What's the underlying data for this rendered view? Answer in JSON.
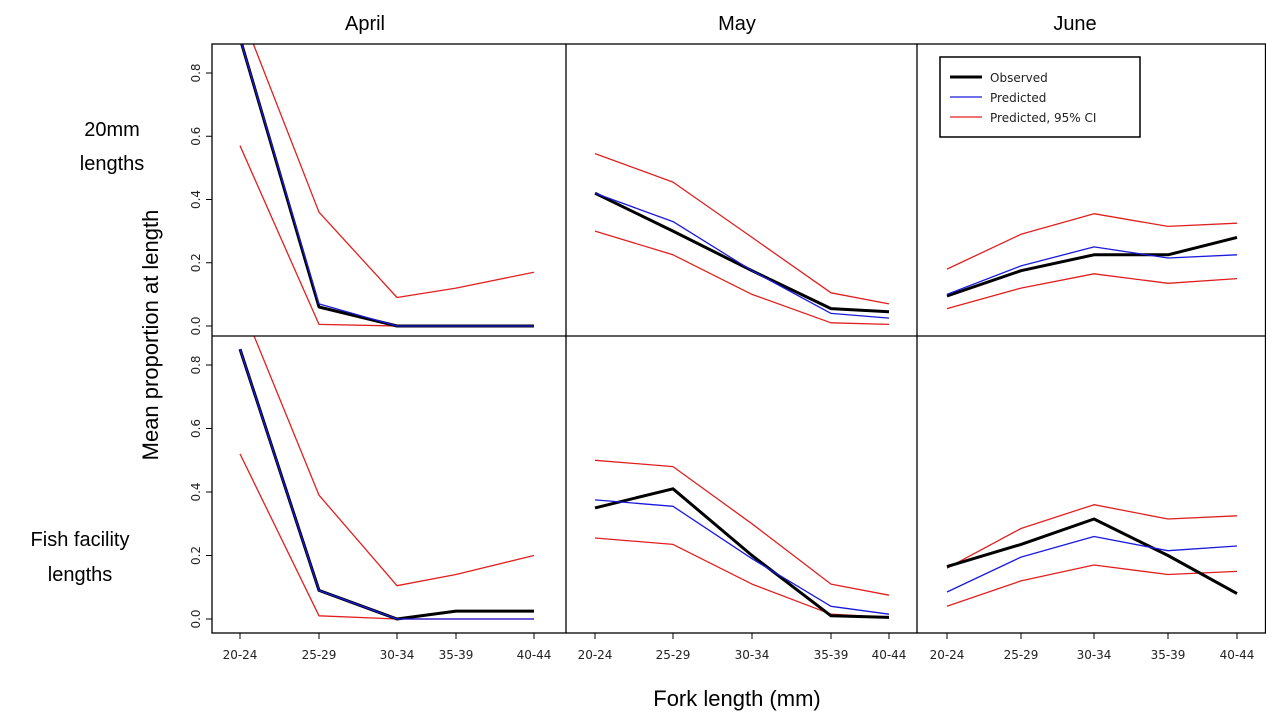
{
  "chart_data": {
    "type": "line",
    "column_titles": [
      "April",
      "May",
      "June"
    ],
    "row_labels": [
      [
        "20mm",
        "lengths"
      ],
      [
        "Fish facility",
        "lengths"
      ]
    ],
    "xlabel": "Fork length (mm)",
    "ylabel": "Mean proportion at length",
    "categories": [
      "20-24",
      "25-29",
      "30-34",
      "35-39",
      "40-44"
    ],
    "yticks": [
      "0.0",
      "0.2",
      "0.4",
      "0.6",
      "0.8"
    ],
    "ylim": [
      -0.02,
      0.88
    ],
    "legend": {
      "placement": "top-right panel",
      "entries": [
        "Observed",
        "Predicted",
        "Predicted, 95% CI"
      ]
    },
    "colors": {
      "observed": "#000000",
      "predicted": "#1a1adb",
      "ci": "#e02020"
    },
    "panels": [
      {
        "row": 0,
        "col": 0,
        "observed": [
          0.91,
          0.06,
          0.0,
          0.0,
          0.0
        ],
        "predicted": [
          0.91,
          0.07,
          0.0,
          0.0,
          0.0
        ],
        "ci_lower": [
          0.57,
          0.005,
          0.0,
          0.0,
          0.0
        ],
        "ci_upper": [
          1.0,
          0.36,
          0.09,
          0.12,
          0.17
        ]
      },
      {
        "row": 0,
        "col": 1,
        "observed": [
          0.42,
          0.3,
          0.175,
          0.055,
          0.045
        ],
        "predicted": [
          0.42,
          0.33,
          0.175,
          0.04,
          0.025
        ],
        "ci_lower": [
          0.3,
          0.225,
          0.1,
          0.01,
          0.005
        ],
        "ci_upper": [
          0.545,
          0.455,
          0.28,
          0.105,
          0.07
        ]
      },
      {
        "row": 0,
        "col": 2,
        "observed": [
          0.095,
          0.175,
          0.225,
          0.225,
          0.28
        ],
        "predicted": [
          0.1,
          0.19,
          0.25,
          0.215,
          0.225
        ],
        "ci_lower": [
          0.055,
          0.12,
          0.165,
          0.135,
          0.15
        ],
        "ci_upper": [
          0.18,
          0.29,
          0.355,
          0.315,
          0.325
        ]
      },
      {
        "row": 1,
        "col": 0,
        "observed": [
          0.85,
          0.09,
          0.0,
          0.025,
          0.025
        ],
        "predicted": [
          0.85,
          0.09,
          0.0,
          0.0,
          0.0
        ],
        "ci_lower": [
          0.52,
          0.01,
          0.0,
          0.0,
          0.0
        ],
        "ci_upper": [
          1.0,
          0.39,
          0.105,
          0.14,
          0.2
        ]
      },
      {
        "row": 1,
        "col": 1,
        "observed": [
          0.35,
          0.41,
          0.2,
          0.01,
          0.005
        ],
        "predicted": [
          0.375,
          0.355,
          0.19,
          0.04,
          0.015
        ],
        "ci_lower": [
          0.255,
          0.235,
          0.11,
          0.015,
          0.005
        ],
        "ci_upper": [
          0.5,
          0.48,
          0.3,
          0.11,
          0.075
        ]
      },
      {
        "row": 1,
        "col": 2,
        "observed": [
          0.165,
          0.235,
          0.315,
          0.2,
          0.08
        ],
        "predicted": [
          0.085,
          0.195,
          0.26,
          0.215,
          0.23
        ],
        "ci_lower": [
          0.04,
          0.12,
          0.17,
          0.14,
          0.15
        ],
        "ci_upper": [
          0.16,
          0.285,
          0.36,
          0.315,
          0.325
        ]
      }
    ]
  }
}
